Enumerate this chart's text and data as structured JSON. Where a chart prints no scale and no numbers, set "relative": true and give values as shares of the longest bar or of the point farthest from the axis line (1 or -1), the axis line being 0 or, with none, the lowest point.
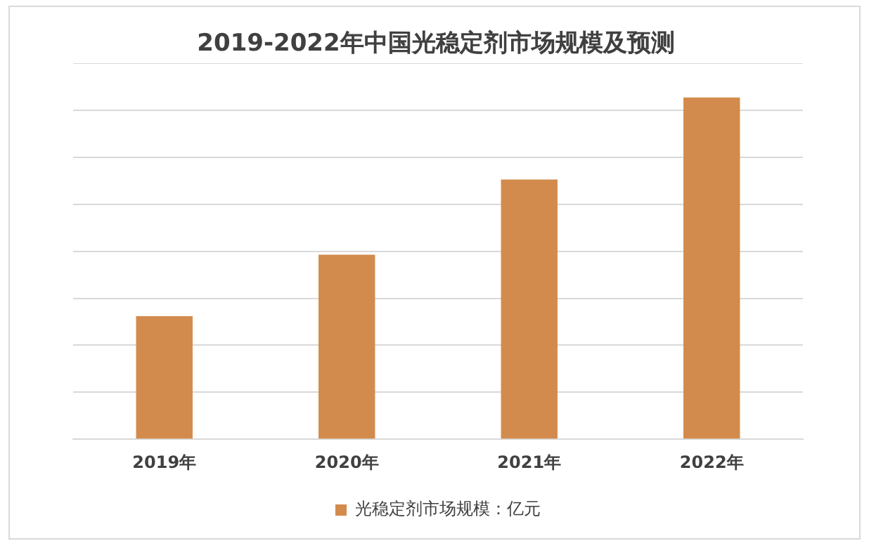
{
  "chart_data": {
    "type": "bar",
    "title": "2019-2022年中国光稳定剂市场规模及预测",
    "categories": [
      "2019年",
      "2020年",
      "2021年",
      "2022年"
    ],
    "relative": true,
    "grid": "y",
    "legend": "bottom",
    "series": [
      {
        "name": "光稳定剂市场规模：亿元",
        "color": "#d38b4d",
        "values": [
          0.36,
          0.54,
          0.76,
          1
        ]
      }
    ]
  }
}
